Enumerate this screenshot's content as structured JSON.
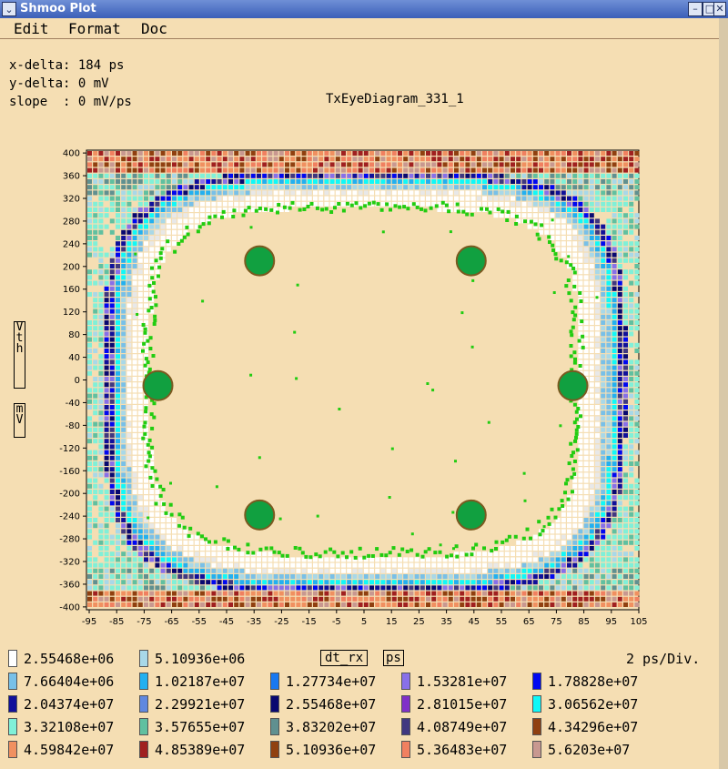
{
  "window": {
    "title": "Shmoo Plot",
    "menu_icon": "chevron-down-icon",
    "buttons": [
      "–",
      "□",
      "✕"
    ]
  },
  "menu": [
    "Edit",
    "Format",
    "Doc"
  ],
  "info": {
    "x_delta": "x-delta: 184 ps",
    "y_delta": "y-delta: 0 mV",
    "slope": "slope  : 0 mV/ps"
  },
  "chart_data": {
    "type": "heatmap",
    "title": "TxEyeDiagram_331_1",
    "ylabel_top": "Vth",
    "ylabel_bottom": "mV",
    "x_ticks": [
      -95,
      -85,
      -75,
      -65,
      -55,
      -45,
      -35,
      -25,
      -15,
      -5,
      5,
      15,
      25,
      35,
      45,
      55,
      65,
      75,
      85,
      95,
      105
    ],
    "y_ticks": [
      400,
      360,
      320,
      280,
      240,
      200,
      160,
      120,
      80,
      40,
      0,
      -40,
      -80,
      -120,
      -160,
      -200,
      -240,
      -280,
      -320,
      -360,
      -400
    ],
    "xlim": [
      -96,
      105
    ],
    "ylim": [
      -405,
      405
    ],
    "x_per_div": "2 ps/Div.",
    "mask_points": [
      {
        "x": -33,
        "y": 210
      },
      {
        "x": 44,
        "y": 210
      },
      {
        "x": -70,
        "y": -10
      },
      {
        "x": 81,
        "y": -10
      },
      {
        "x": -33,
        "y": -238
      },
      {
        "x": 44,
        "y": -238
      }
    ],
    "eye_ring": {
      "cx": 4.5,
      "cy": 0,
      "rx_inner": 78,
      "ry_inner": 305,
      "rx_outer": 95,
      "ry_outer": 372,
      "corner_power": 4
    },
    "colors": {
      "background": "#f5deb3",
      "green_trace": "#22cc11",
      "mask": "#11a040",
      "mask_edge": "#7a5a20"
    },
    "legend": [
      {
        "value": "2.55468e+06",
        "color": "#ffffff"
      },
      {
        "value": "5.10936e+06",
        "color": "#a8d8e8"
      },
      {
        "value": "7.66404e+06",
        "color": "#78c0e8"
      },
      {
        "value": "1.02187e+07",
        "color": "#22b0f0"
      },
      {
        "value": "1.27734e+07",
        "color": "#1878f0"
      },
      {
        "value": "1.53281e+07",
        "color": "#8870e8"
      },
      {
        "value": "1.78828e+07",
        "color": "#0008f0"
      },
      {
        "value": "2.04374e+07",
        "color": "#10109a"
      },
      {
        "value": "2.29921e+07",
        "color": "#6088e0"
      },
      {
        "value": "2.55468e+07",
        "color": "#080870"
      },
      {
        "value": "2.81015e+07",
        "color": "#8030c8"
      },
      {
        "value": "3.06562e+07",
        "color": "#10f8f8"
      },
      {
        "value": "3.32108e+07",
        "color": "#80f0d8"
      },
      {
        "value": "3.57655e+07",
        "color": "#60c0a0"
      },
      {
        "value": "3.83202e+07",
        "color": "#609090"
      },
      {
        "value": "4.08749e+07",
        "color": "#403880"
      },
      {
        "value": "4.34296e+07",
        "color": "#904010"
      },
      {
        "value": "4.59842e+07",
        "color": "#f09060"
      },
      {
        "value": "4.85389e+07",
        "color": "#a02020"
      },
      {
        "value": "5.10936e+07",
        "color": "#904010"
      },
      {
        "value": "5.36483e+07",
        "color": "#f08060"
      },
      {
        "value": "5.6203e+07",
        "color": "#c89890"
      }
    ],
    "x_unit_box": "dt_rx",
    "x_unit": "ps"
  }
}
